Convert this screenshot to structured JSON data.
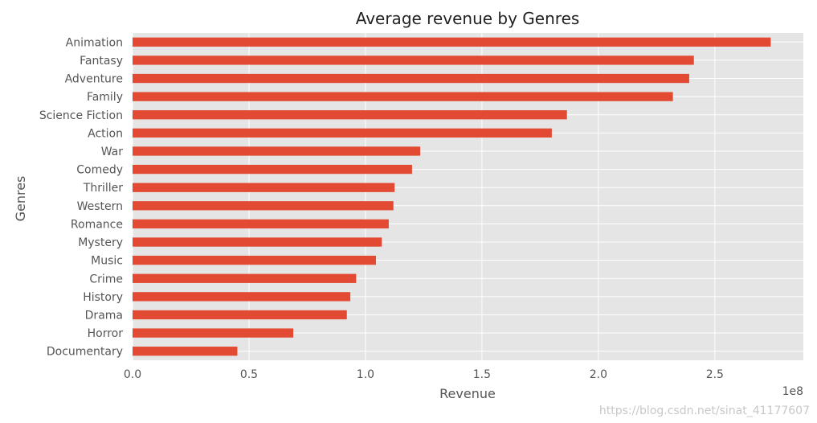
{
  "chart_data": {
    "type": "bar",
    "orientation": "horizontal",
    "title": "Average revenue by Genres",
    "xlabel": "Revenue",
    "ylabel": "Genres",
    "x_offset_text": "1e8",
    "xlim": [
      0,
      2.88
    ],
    "x_ticks": [
      0.0,
      0.5,
      1.0,
      1.5,
      2.0,
      2.5
    ],
    "x_tick_labels": [
      "0.0",
      "0.5",
      "1.0",
      "1.5",
      "2.0",
      "2.5"
    ],
    "categories": [
      "Animation",
      "Fantasy",
      "Adventure",
      "Family",
      "Science Fiction",
      "Action",
      "War",
      "Comedy",
      "Thriller",
      "Western",
      "Romance",
      "Mystery",
      "Music",
      "Crime",
      "History",
      "Drama",
      "Horror",
      "Documentary"
    ],
    "values": [
      2.74,
      2.41,
      2.39,
      2.32,
      1.865,
      1.8,
      1.235,
      1.2,
      1.125,
      1.12,
      1.1,
      1.07,
      1.045,
      0.96,
      0.935,
      0.92,
      0.69,
      0.45
    ],
    "grid": true,
    "bar_color": "#e24a33",
    "plot_background": "#e5e5e5",
    "grid_color": "#ffffff"
  },
  "watermark": "https://blog.csdn.net/sinat_41177607"
}
